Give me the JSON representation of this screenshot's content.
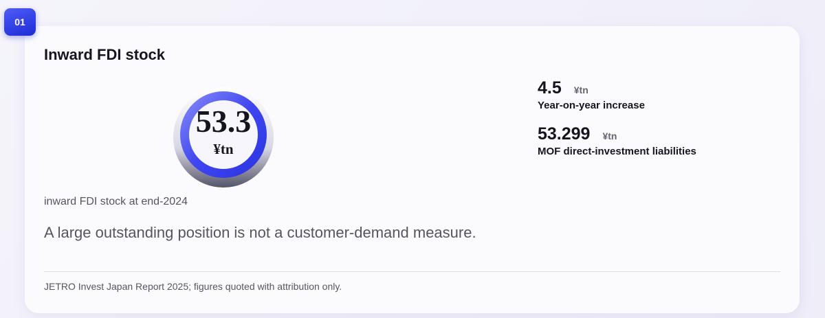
{
  "badge": "01",
  "card": {
    "title": "Inward FDI stock",
    "gauge": {
      "value": "53.3",
      "unit": "¥tn"
    },
    "caption": "inward FDI stock at end-2024",
    "note": "A large outstanding position is not a customer-demand measure.",
    "stats": [
      {
        "value": "4.5",
        "unit": "¥tn",
        "label": "Year-on-year increase"
      },
      {
        "value": "53.299",
        "unit": "¥tn",
        "label": "MOF direct-investment liabilities"
      }
    ],
    "source": "JETRO Invest Japan Report 2025; figures quoted with attribution only."
  }
}
